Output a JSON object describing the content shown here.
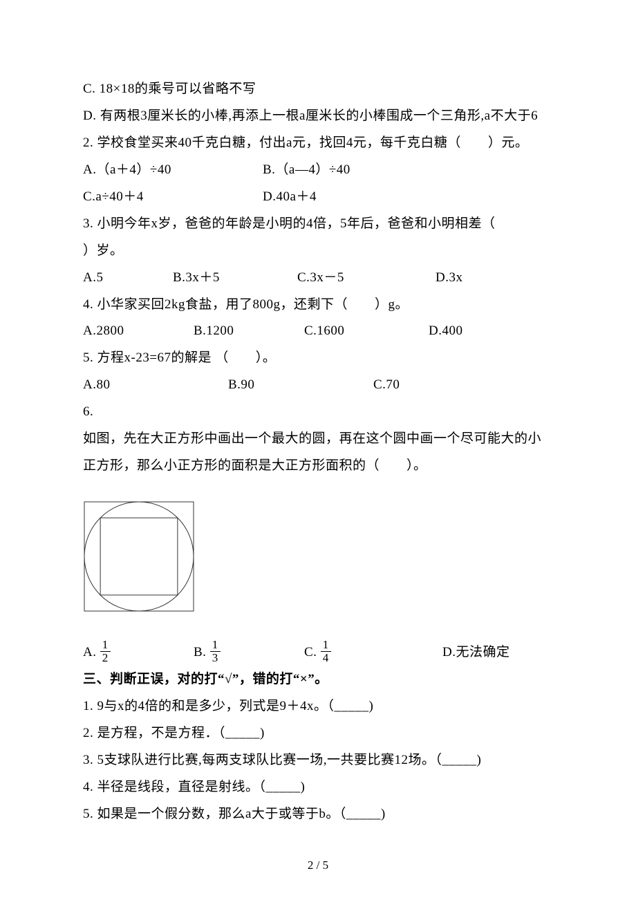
{
  "q1c": "C. 18×18的乘号可以省略不写",
  "q1d": "D. 有两根3厘米长的小棒,再添上一根a厘米长的小棒围成一个三角形,a不大于6",
  "q2": {
    "stem": "2. 学校食堂买来40千克白糖，付出a元，找回4元，每千克白糖（　　）元。",
    "a": "A.（a＋4）÷40",
    "b": "B.（a—4）÷40",
    "c": "C.a÷40＋4",
    "d": "D.40a＋4"
  },
  "q3": {
    "stem1": "3. 小明今年x岁，爸爸的年龄是小明的4倍，5年后，爸爸和小明相差（",
    "stem2": "）岁。",
    "a": "A.5",
    "b": "B.3x＋5",
    "c": "C.3x－5",
    "d": "D.3x"
  },
  "q4": {
    "stem": "4. 小华家买回2kg食盐，用了800g，还剩下（　　）g。",
    "a": "A.2800",
    "b": "B.1200",
    "c": "C.1600",
    "d": "D.400"
  },
  "q5": {
    "stem": "5. 方程x-23=67的解是 （　　）。",
    "a": "A.80",
    "b": "B.90",
    "c": "C.70"
  },
  "q6": {
    "stem1": "6.",
    "stem2": "如图，先在大正方形中画出一个最大的圆，再在这个圆中画一个尽可能大的小",
    "stem3": "正方形，那么小正方形的面积是大正方形面积的（　　）。",
    "a_prefix": "A.",
    "a_num": "1",
    "a_den": "2",
    "b_prefix": "B.",
    "b_num": "1",
    "b_den": "3",
    "c_prefix": "C.",
    "c_num": "1",
    "c_den": "4",
    "d": "D.无法确定"
  },
  "section3": "三、判断正误，对的打“√”，错的打“×”。",
  "j1": "1. 9与x的4倍的和是多少，列式是9＋4x。（_____)",
  "j2": "2. 是方程，不是方程．（_____)",
  "j3": "3. 5支球队进行比赛,每两支球队比赛一场,一共要比赛12场。（_____)",
  "j4": "4. 半径是线段，直径是射线。（_____)",
  "j5": "5. 如果是一个假分数，那么a大于或等于b。（_____)",
  "footer": "2 / 5",
  "figure": {
    "width": 162,
    "height": 166,
    "outer_square_stroke": "#333333",
    "circle_stroke": "#333333",
    "inner_square_stroke": "#333333",
    "stroke_width": 1
  },
  "spacing": {
    "q2ab_a_w": 260,
    "q2cd_c_w": 260,
    "q3_a_w": 130,
    "q3_b_w": 180,
    "q3_c_w": 200,
    "q4_a_w": 160,
    "q4_b_w": 160,
    "q4_c_w": 180,
    "q5_a_w": 210,
    "q5_b_w": 210,
    "q6_a_w": 160,
    "q6_b_w": 160,
    "q6_c_w": 200
  }
}
